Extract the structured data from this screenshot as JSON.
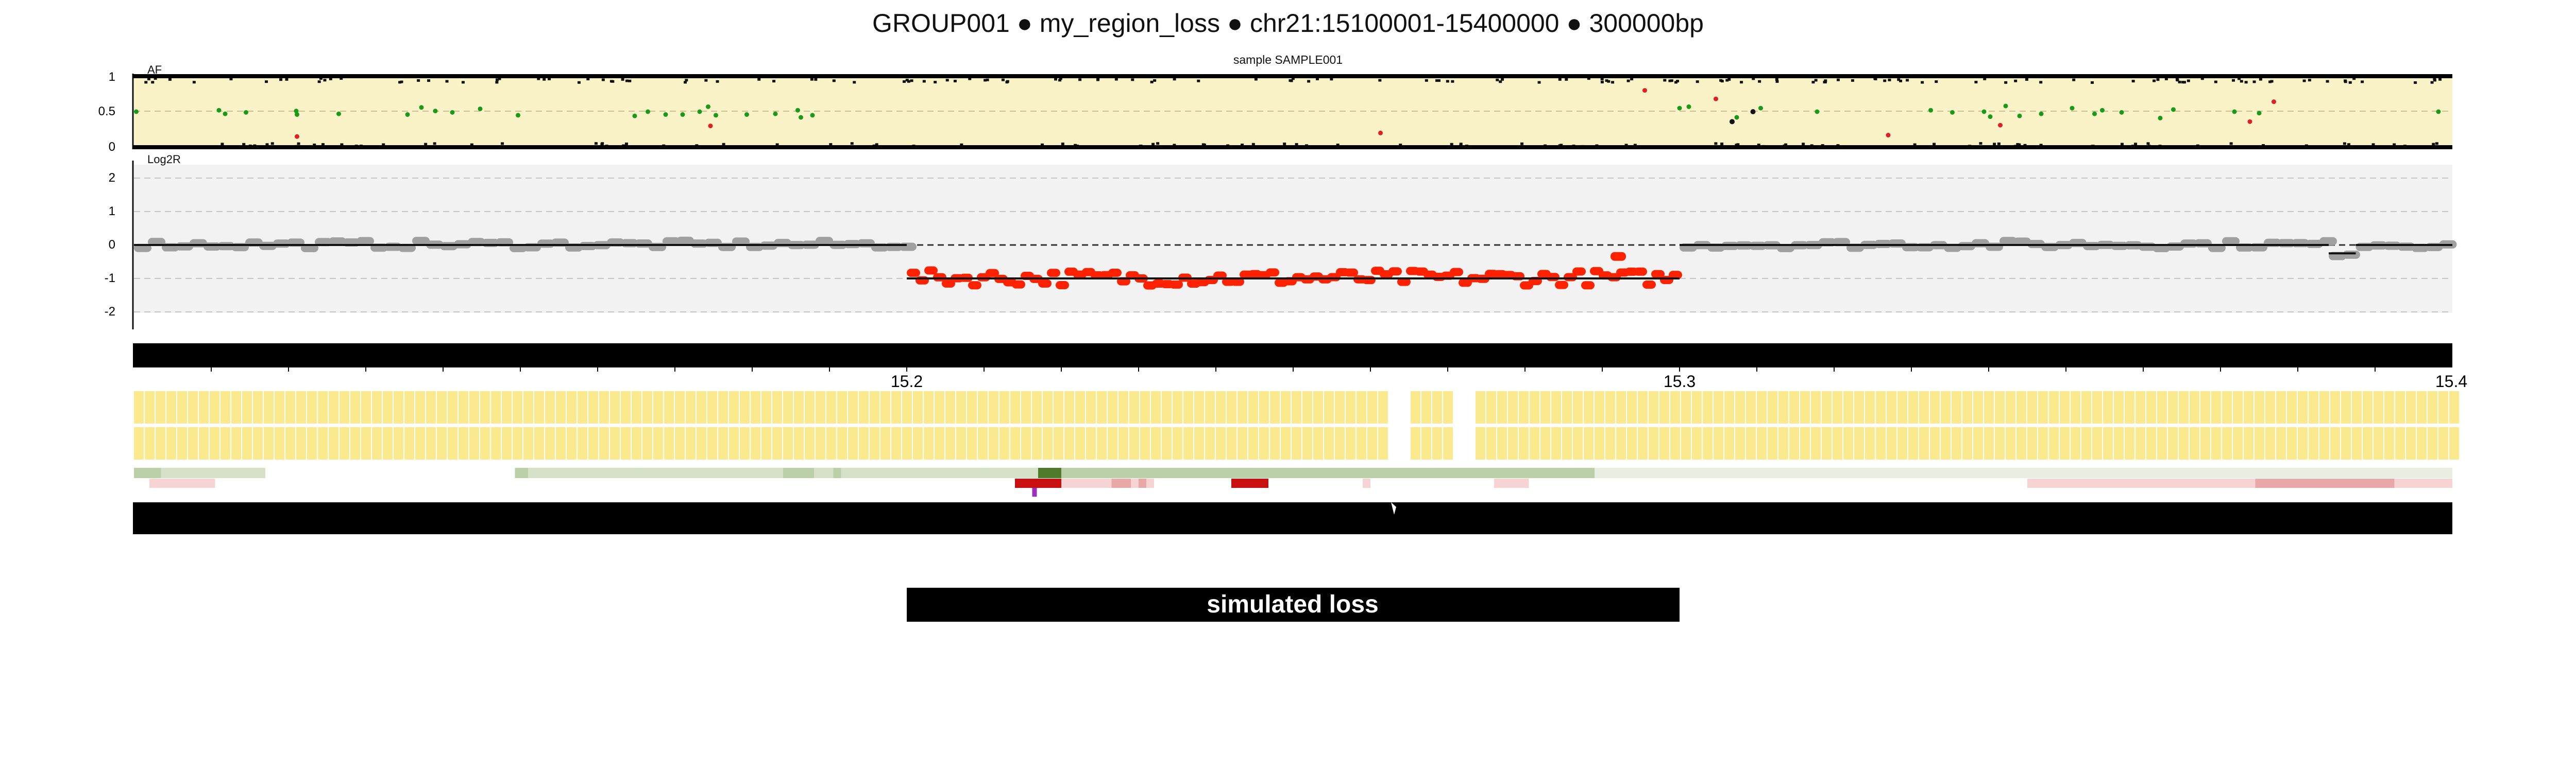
{
  "title": "GROUP001  ●  my_region_loss ● chr21:15100001-15400000 ● 300000bp",
  "sample_label": "sample SAMPLE001",
  "region_label": "simulated loss",
  "colors": {
    "af_background": "#fbf3c8",
    "af_het": "#1a9a1a",
    "af_hom": "#111111",
    "af_other": "#e02020",
    "log2r_background": "#f2f2f2",
    "log2r_normal": "#a0a0a0",
    "log2r_loss": "#ff2200",
    "segment_line": "#111111",
    "ruler": "#000000",
    "gene_block": "#fbe98e",
    "track_green": "#d5e2c8",
    "track_darkgreen": "#4f7a2a",
    "track_pink": "#f2c6c6",
    "track_red": "#c81010",
    "marker_purple": "#9b30c0",
    "region_bar": "#000000"
  },
  "chart_data": {
    "type": "scatter",
    "chrom": "chr21",
    "start": 15100001,
    "end": 15400000,
    "region_length": "300000bp",
    "af_panel": {
      "label": "AF",
      "ylim": [
        0,
        1
      ],
      "yticks": [
        "1",
        "0.5",
        "0"
      ],
      "het_points": [
        {
          "x": 15100300,
          "y": 0.5
        },
        {
          "x": 15111000,
          "y": 0.52
        },
        {
          "x": 15111800,
          "y": 0.47
        },
        {
          "x": 15114500,
          "y": 0.49
        },
        {
          "x": 15121000,
          "y": 0.51
        },
        {
          "x": 15121100,
          "y": 0.46
        },
        {
          "x": 15126500,
          "y": 0.47
        },
        {
          "x": 15135400,
          "y": 0.46
        },
        {
          "x": 15137200,
          "y": 0.56
        },
        {
          "x": 15139000,
          "y": 0.51
        },
        {
          "x": 15141200,
          "y": 0.49
        },
        {
          "x": 15144800,
          "y": 0.54
        },
        {
          "x": 15149700,
          "y": 0.45
        },
        {
          "x": 15164800,
          "y": 0.44
        },
        {
          "x": 15166500,
          "y": 0.5
        },
        {
          "x": 15168800,
          "y": 0.46
        },
        {
          "x": 15171000,
          "y": 0.46
        },
        {
          "x": 15173200,
          "y": 0.5
        },
        {
          "x": 15174300,
          "y": 0.57
        },
        {
          "x": 15175300,
          "y": 0.45
        },
        {
          "x": 15179300,
          "y": 0.46
        },
        {
          "x": 15183000,
          "y": 0.47
        },
        {
          "x": 15185900,
          "y": 0.52
        },
        {
          "x": 15186300,
          "y": 0.42
        },
        {
          "x": 15187800,
          "y": 0.45
        },
        {
          "x": 15300000,
          "y": 0.55
        },
        {
          "x": 15301200,
          "y": 0.57
        },
        {
          "x": 15307400,
          "y": 0.42
        },
        {
          "x": 15310500,
          "y": 0.55
        },
        {
          "x": 15317800,
          "y": 0.5
        },
        {
          "x": 15332500,
          "y": 0.52
        },
        {
          "x": 15335300,
          "y": 0.49
        },
        {
          "x": 15339400,
          "y": 0.5
        },
        {
          "x": 15340200,
          "y": 0.43
        },
        {
          "x": 15342200,
          "y": 0.58
        },
        {
          "x": 15344000,
          "y": 0.44
        },
        {
          "x": 15346800,
          "y": 0.47
        },
        {
          "x": 15350800,
          "y": 0.55
        },
        {
          "x": 15353700,
          "y": 0.47
        },
        {
          "x": 15354700,
          "y": 0.52
        },
        {
          "x": 15357200,
          "y": 0.49
        },
        {
          "x": 15362200,
          "y": 0.41
        },
        {
          "x": 15363900,
          "y": 0.53
        },
        {
          "x": 15371800,
          "y": 0.5
        },
        {
          "x": 15375000,
          "y": 0.48
        },
        {
          "x": 15398200,
          "y": 0.5
        }
      ],
      "other_points": [
        {
          "x": 15121100,
          "y": 0.15
        },
        {
          "x": 15174600,
          "y": 0.3
        },
        {
          "x": 15261300,
          "y": 0.2
        },
        {
          "x": 15295500,
          "y": 0.8
        },
        {
          "x": 15304700,
          "y": 0.68
        },
        {
          "x": 15327000,
          "y": 0.17
        },
        {
          "x": 15341500,
          "y": 0.31
        },
        {
          "x": 15373800,
          "y": 0.36
        },
        {
          "x": 15376900,
          "y": 0.64
        }
      ],
      "hom_points": [
        {
          "x": 15306800,
          "y": 0.36
        },
        {
          "x": 15309500,
          "y": 0.5
        }
      ]
    },
    "log2r_panel": {
      "label": "Log2R",
      "ylim": [
        -2.5,
        2.5
      ],
      "yticks": [
        "2",
        "1",
        "0",
        "-1",
        "-2"
      ],
      "gridlines": [
        2,
        1,
        -1,
        -2
      ],
      "dashed_zero": true,
      "segments": [
        {
          "start": 15100001,
          "end": 15200000,
          "value": 0.0,
          "status": "normal"
        },
        {
          "start": 15200000,
          "end": 15300000,
          "value": -1.0,
          "status": "loss"
        },
        {
          "start": 15300000,
          "end": 15384000,
          "value": 0.0,
          "status": "normal"
        },
        {
          "start": 15384000,
          "end": 15387500,
          "value": -0.25,
          "status": "normal"
        },
        {
          "start": 15387500,
          "end": 15400000,
          "value": 0.0,
          "status": "normal"
        }
      ],
      "loss_outlier": {
        "x": 15292000,
        "y": -0.35
      }
    },
    "ruler": {
      "tick_labels": [
        {
          "x": 15200000,
          "label": "15.2"
        },
        {
          "x": 15300000,
          "label": "15.3"
        },
        {
          "x": 15400000,
          "label": "15.4"
        }
      ]
    },
    "gene_track": {
      "gaps": [
        [
          15263400,
          15264600
        ],
        [
          15272000,
          15272700
        ]
      ]
    },
    "annotation_tracks": {
      "green": [
        {
          "start": 15100001,
          "end": 15103500,
          "shade": "mid"
        },
        {
          "start": 15103500,
          "end": 15117000,
          "shade": "light"
        },
        {
          "start": 15149300,
          "end": 15151000,
          "shade": "mid"
        },
        {
          "start": 15151000,
          "end": 15184000,
          "shade": "light"
        },
        {
          "start": 15184000,
          "end": 15188000,
          "shade": "mid"
        },
        {
          "start": 15188000,
          "end": 15190500,
          "shade": "light"
        },
        {
          "start": 15190500,
          "end": 15191500,
          "shade": "mid"
        },
        {
          "start": 15191500,
          "end": 15217000,
          "shade": "light"
        },
        {
          "start": 15217000,
          "end": 15220000,
          "shade": "dark"
        },
        {
          "start": 15220000,
          "end": 15289000,
          "shade": "mid"
        },
        {
          "start": 15289000,
          "end": 15400000,
          "shade": "pale"
        }
      ],
      "pink": [
        {
          "start": 15102000,
          "end": 15110500,
          "shade": "light"
        },
        {
          "start": 15214000,
          "end": 15220000,
          "shade": "red"
        },
        {
          "start": 15220000,
          "end": 15232000,
          "shade": "light"
        },
        {
          "start": 15226500,
          "end": 15229000,
          "shade": "mid"
        },
        {
          "start": 15230000,
          "end": 15231000,
          "shade": "mid"
        },
        {
          "start": 15242000,
          "end": 15246800,
          "shade": "red"
        },
        {
          "start": 15259000,
          "end": 15260000,
          "shade": "light"
        },
        {
          "start": 15276000,
          "end": 15280500,
          "shade": "light"
        },
        {
          "start": 15345000,
          "end": 15400000,
          "shade": "light"
        },
        {
          "start": 15374500,
          "end": 15392500,
          "shade": "mid"
        }
      ],
      "purple_marker": 15216500
    },
    "region_bar": {
      "start": 15200000,
      "end": 15300000
    }
  }
}
